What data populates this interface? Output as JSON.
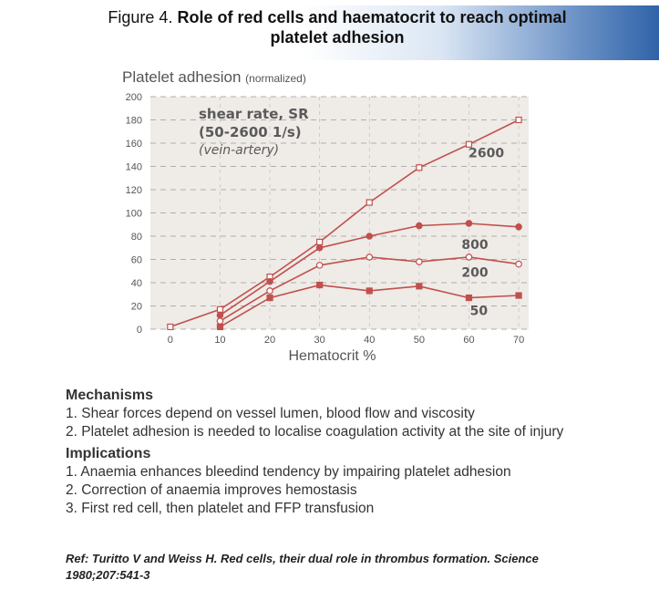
{
  "header": {
    "title_prefix": "Figure 4.",
    "title_bold": "Role of red cells and haematocrit to reach optimal platelet adhesion"
  },
  "chart_data": {
    "type": "line",
    "ylabel": "Platelet adhesion",
    "ylabel_unit": "(normalized)",
    "xlabel": "Hematocrit %",
    "x_ticks": [
      0,
      10,
      20,
      30,
      40,
      50,
      60,
      70
    ],
    "y_ticks": [
      0,
      20,
      40,
      60,
      80,
      100,
      120,
      140,
      160,
      180,
      200
    ],
    "xlim": [
      -4,
      72
    ],
    "ylim": [
      0,
      200
    ],
    "grid": "horizontal-dashed",
    "annotation": {
      "line1": "shear rate, SR",
      "line2": "(50-2600 1/s)",
      "line3": "(vein-artery)"
    },
    "series": [
      {
        "name": "2600",
        "marker": "square-open",
        "x": [
          0,
          10,
          20,
          30,
          40,
          50,
          60,
          70
        ],
        "y": [
          2,
          17,
          45,
          75,
          109,
          139,
          159,
          180
        ]
      },
      {
        "name": "800",
        "marker": "circle-filled",
        "x": [
          10,
          20,
          30,
          40,
          50,
          60,
          70
        ],
        "y": [
          12,
          41,
          70,
          80,
          89,
          91,
          88
        ]
      },
      {
        "name": "200",
        "marker": "circle-open",
        "x": [
          10,
          20,
          30,
          40,
          50,
          60,
          70
        ],
        "y": [
          7,
          33,
          55,
          62,
          58,
          62,
          56
        ]
      },
      {
        "name": "50",
        "marker": "square-filled",
        "x": [
          10,
          20,
          30,
          40,
          50,
          60,
          70
        ],
        "y": [
          2,
          27,
          38,
          33,
          37,
          27,
          29
        ]
      }
    ],
    "colors": {
      "line": "#c0504d",
      "plot_bg": "#efebe7",
      "text": "#555555"
    }
  },
  "mechanisms": {
    "heading": "Mechanisms",
    "items": [
      "1. Shear forces depend on vessel lumen, blood flow and viscosity",
      "2. Platelet adhesion is needed to localise coagulation activity at the site of injury"
    ]
  },
  "implications": {
    "heading": "Implications",
    "items": [
      "1. Anaemia enhances bleedind tendency by impairing platelet adhesion",
      "2. Correction of anaemia improves hemostasis",
      "3. First red cell, then platelet and FFP transfusion"
    ]
  },
  "reference": {
    "text": "Ref: Turitto V and Weiss H. Red cells, their dual role in thrombus formation. Science 1980;207:541-3"
  }
}
